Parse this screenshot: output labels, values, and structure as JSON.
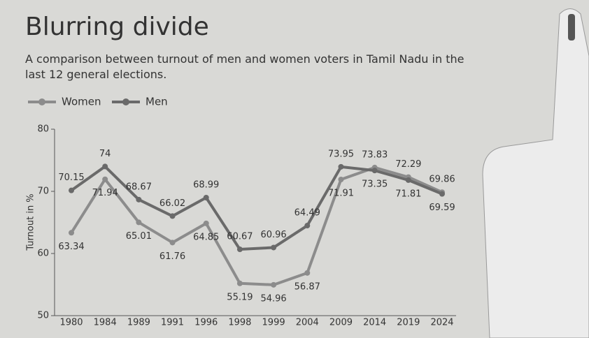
{
  "chart_data": {
    "type": "line",
    "title": "Blurring divide",
    "subtitle": "A comparison between turnout of men and women voters in Tamil Nadu in the last 12 general elections.",
    "y_label": "Turnout in %",
    "categories": [
      "1980",
      "1984",
      "1989",
      "1991",
      "1996",
      "1998",
      "1999",
      "2004",
      "2009",
      "2014",
      "2019",
      "2024"
    ],
    "series": [
      {
        "name": "Women",
        "color": "#8c8c8c",
        "values": [
          63.34,
          71.94,
          65.01,
          61.76,
          64.85,
          55.19,
          54.96,
          56.87,
          71.91,
          73.83,
          72.29,
          69.86
        ]
      },
      {
        "name": "Men",
        "color": "#6a6a6a",
        "values": [
          70.15,
          74,
          68.67,
          66.02,
          68.99,
          60.67,
          60.96,
          64.49,
          73.95,
          73.35,
          71.81,
          69.59
        ]
      }
    ],
    "ylim": [
      50,
      80
    ],
    "yticks": [
      50,
      60,
      70,
      80
    ],
    "grid": false
  }
}
